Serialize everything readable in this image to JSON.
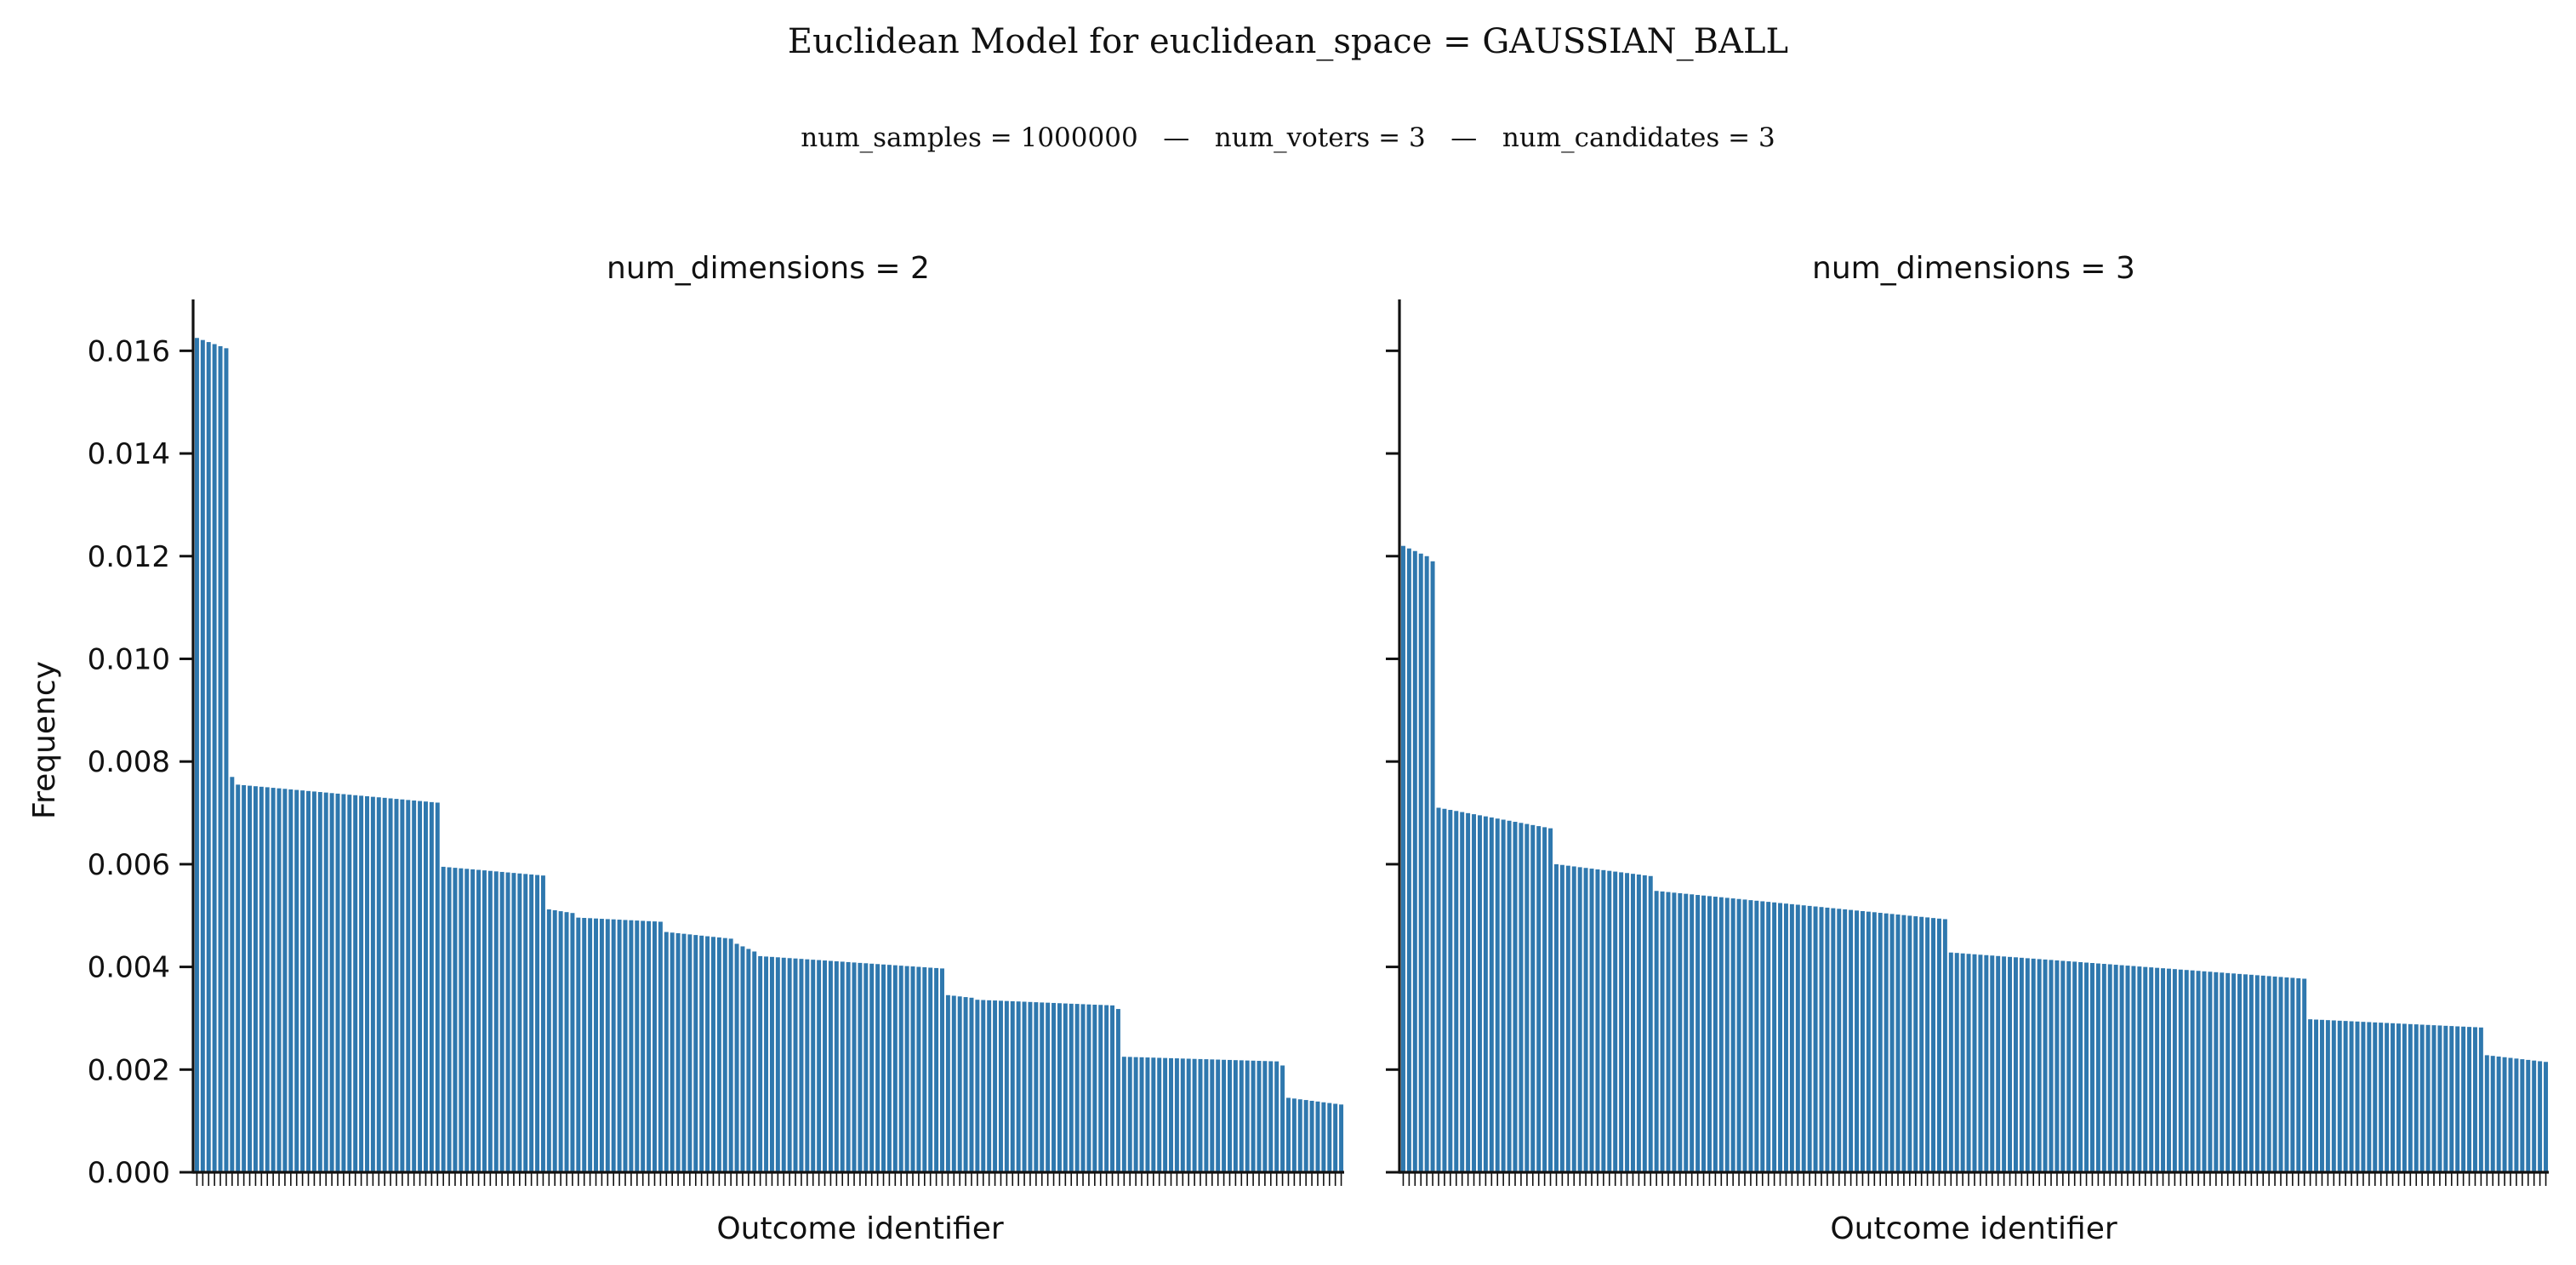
{
  "figure": {
    "title": "Euclidean Model for euclidean_space = GAUSSIAN_BALL",
    "subtitle": "num_samples = 1000000   —   num_voters = 3   —   num_candidates = 3",
    "bar_color": "#2f78ae"
  },
  "chart_data": [
    {
      "type": "bar",
      "title": "num_dimensions = 2",
      "xlabel": "Outcome identifier",
      "ylabel": "Frequency",
      "ylim": [
        0,
        0.017
      ],
      "yticks": [
        "0.000",
        "0.002",
        "0.004",
        "0.006",
        "0.008",
        "0.010",
        "0.012",
        "0.014",
        "0.016"
      ],
      "grid": false,
      "legend": false,
      "x_tick_labels_shown": false,
      "groups": [
        {
          "count": 6,
          "from": 0.01625,
          "to": 0.01605
        },
        {
          "count": 1,
          "from": 0.0077,
          "to": 0.0077
        },
        {
          "count": 35,
          "from": 0.00755,
          "to": 0.0072
        },
        {
          "count": 18,
          "from": 0.00595,
          "to": 0.00578
        },
        {
          "count": 5,
          "from": 0.00512,
          "to": 0.00505
        },
        {
          "count": 15,
          "from": 0.00496,
          "to": 0.00488
        },
        {
          "count": 12,
          "from": 0.00468,
          "to": 0.00455
        },
        {
          "count": 4,
          "from": 0.00445,
          "to": 0.0043
        },
        {
          "count": 32,
          "from": 0.00421,
          "to": 0.00397
        },
        {
          "count": 5,
          "from": 0.00345,
          "to": 0.0034
        },
        {
          "count": 24,
          "from": 0.00336,
          "to": 0.00325
        },
        {
          "count": 1,
          "from": 0.00318,
          "to": 0.00318
        },
        {
          "count": 27,
          "from": 0.00225,
          "to": 0.00216
        },
        {
          "count": 1,
          "from": 0.00208,
          "to": 0.00208
        },
        {
          "count": 10,
          "from": 0.00145,
          "to": 0.00132
        }
      ]
    },
    {
      "type": "bar",
      "title": "num_dimensions = 3",
      "xlabel": "Outcome identifier",
      "ylim": [
        0,
        0.017
      ],
      "grid": false,
      "legend": false,
      "x_tick_labels_shown": false,
      "groups": [
        {
          "count": 5,
          "from": 0.0122,
          "to": 0.012
        },
        {
          "count": 1,
          "from": 0.0119,
          "to": 0.0119
        },
        {
          "count": 20,
          "from": 0.0071,
          "to": 0.0067
        },
        {
          "count": 17,
          "from": 0.006,
          "to": 0.00577
        },
        {
          "count": 50,
          "from": 0.00548,
          "to": 0.00493
        },
        {
          "count": 61,
          "from": 0.00428,
          "to": 0.00377
        },
        {
          "count": 30,
          "from": 0.00298,
          "to": 0.00282
        },
        {
          "count": 11,
          "from": 0.00228,
          "to": 0.00215
        }
      ]
    }
  ]
}
